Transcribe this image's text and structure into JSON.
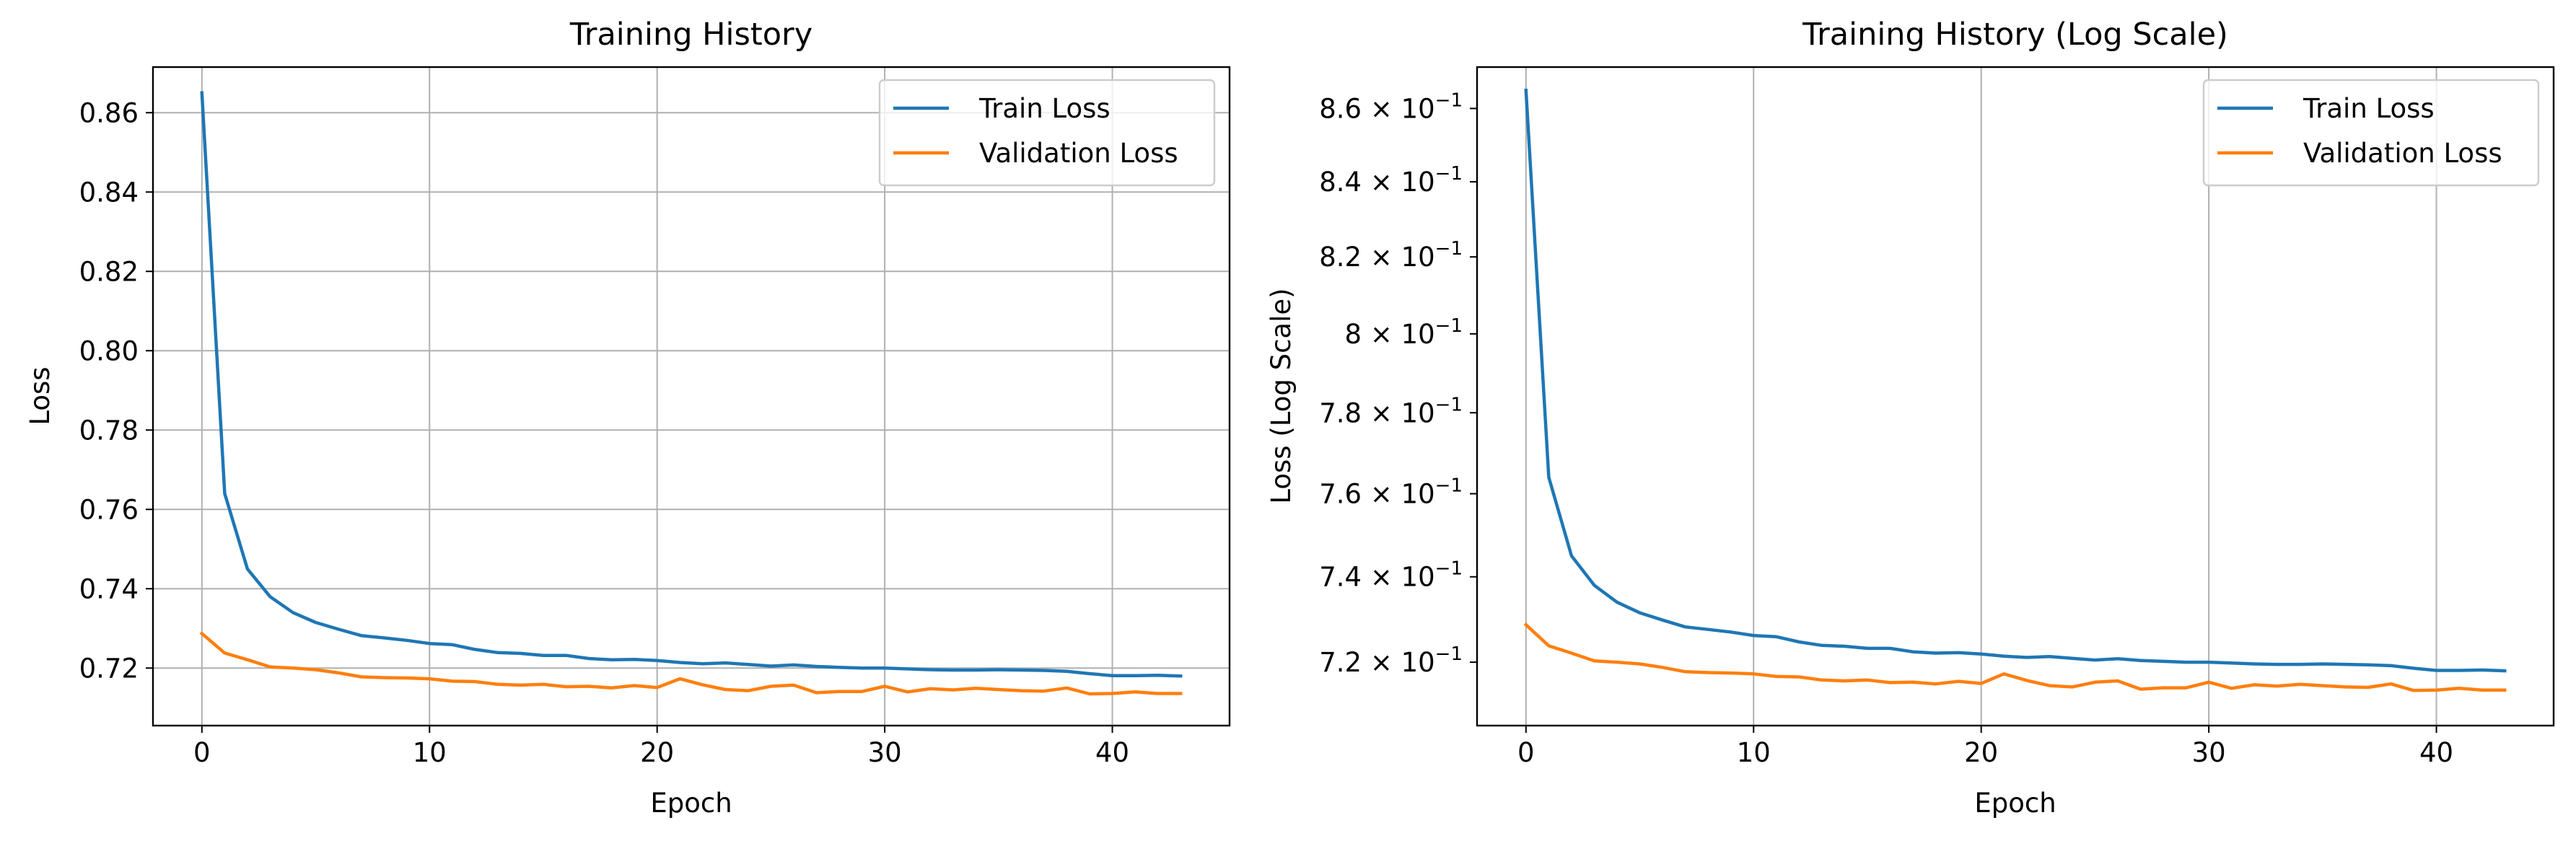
{
  "chart_data": [
    {
      "type": "line",
      "title": "Training History",
      "xlabel": "Epoch",
      "ylabel": "Loss",
      "yscale": "linear",
      "xlim": [
        -2.15,
        45.15
      ],
      "ylim": [
        0.7055,
        0.8715
      ],
      "xticks": [
        0,
        10,
        20,
        30,
        40
      ],
      "xtick_labels": [
        "0",
        "10",
        "20",
        "30",
        "40"
      ],
      "yticks": [
        0.72,
        0.74,
        0.76,
        0.78,
        0.8,
        0.82,
        0.84,
        0.86
      ],
      "ytick_labels": [
        "0.72",
        "0.74",
        "0.76",
        "0.78",
        "0.80",
        "0.82",
        "0.84",
        "0.86"
      ],
      "grid": true,
      "legend_position": "upper right",
      "x": [
        0,
        1,
        2,
        3,
        4,
        5,
        6,
        7,
        8,
        9,
        10,
        11,
        12,
        13,
        14,
        15,
        16,
        17,
        18,
        19,
        20,
        21,
        22,
        23,
        24,
        25,
        26,
        27,
        28,
        29,
        30,
        31,
        32,
        33,
        34,
        35,
        36,
        37,
        38,
        39,
        40,
        41,
        42,
        43
      ],
      "series": [
        {
          "name": "Train Loss",
          "color": "#1f77b4",
          "values": [
            0.865,
            0.764,
            0.745,
            0.738,
            0.734,
            0.7315,
            0.7298,
            0.7282,
            0.7276,
            0.727,
            0.7262,
            0.7259,
            0.7247,
            0.7239,
            0.7237,
            0.7232,
            0.7232,
            0.7224,
            0.7221,
            0.7222,
            0.7219,
            0.7214,
            0.7211,
            0.7213,
            0.7209,
            0.7205,
            0.7208,
            0.7204,
            0.7202,
            0.72,
            0.72,
            0.7198,
            0.7196,
            0.7195,
            0.7195,
            0.7196,
            0.7195,
            0.7194,
            0.7192,
            0.7186,
            0.7181,
            0.7181,
            0.7182,
            0.718
          ]
        },
        {
          "name": "Validation Loss",
          "color": "#ff7f0e",
          "values": [
            0.7287,
            0.7238,
            0.7221,
            0.7203,
            0.72,
            0.7196,
            0.7188,
            0.7178,
            0.7176,
            0.7175,
            0.7173,
            0.7167,
            0.7166,
            0.7159,
            0.7157,
            0.7159,
            0.7153,
            0.7154,
            0.715,
            0.7156,
            0.7151,
            0.7173,
            0.7158,
            0.7146,
            0.7143,
            0.7154,
            0.7157,
            0.7138,
            0.7141,
            0.7141,
            0.7154,
            0.714,
            0.7148,
            0.7145,
            0.7149,
            0.7146,
            0.7143,
            0.7142,
            0.715,
            0.7135,
            0.7136,
            0.714,
            0.7136,
            0.7136
          ]
        }
      ]
    },
    {
      "type": "line",
      "title": "Training History (Log Scale)",
      "xlabel": "Epoch",
      "ylabel": "Loss (Log Scale)",
      "yscale": "log",
      "xlim": [
        -2.15,
        45.15
      ],
      "ylim": [
        0.7055,
        0.8715
      ],
      "xticks": [
        0,
        10,
        20,
        30,
        40
      ],
      "xtick_labels": [
        "0",
        "10",
        "20",
        "30",
        "40"
      ],
      "yticks": [
        0.72,
        0.74,
        0.76,
        0.78,
        0.8,
        0.82,
        0.84,
        0.86
      ],
      "ytick_labels": [
        {
          "mant": "7.2 × 10",
          "exp": "−1"
        },
        {
          "mant": "7.4 × 10",
          "exp": "−1"
        },
        {
          "mant": "7.6 × 10",
          "exp": "−1"
        },
        {
          "mant": "7.8 × 10",
          "exp": "−1"
        },
        {
          "mant": "8 × 10",
          "exp": "−1"
        },
        {
          "mant": "8.2 × 10",
          "exp": "−1"
        },
        {
          "mant": "8.4 × 10",
          "exp": "−1"
        },
        {
          "mant": "8.6 × 10",
          "exp": "−1"
        }
      ],
      "grid": "x-only",
      "legend_position": "upper right",
      "x": [
        0,
        1,
        2,
        3,
        4,
        5,
        6,
        7,
        8,
        9,
        10,
        11,
        12,
        13,
        14,
        15,
        16,
        17,
        18,
        19,
        20,
        21,
        22,
        23,
        24,
        25,
        26,
        27,
        28,
        29,
        30,
        31,
        32,
        33,
        34,
        35,
        36,
        37,
        38,
        39,
        40,
        41,
        42,
        43
      ],
      "series": [
        {
          "name": "Train Loss",
          "color": "#1f77b4",
          "values": [
            0.865,
            0.764,
            0.745,
            0.738,
            0.734,
            0.7315,
            0.7298,
            0.7282,
            0.7276,
            0.727,
            0.7262,
            0.7259,
            0.7247,
            0.7239,
            0.7237,
            0.7232,
            0.7232,
            0.7224,
            0.7221,
            0.7222,
            0.7219,
            0.7214,
            0.7211,
            0.7213,
            0.7209,
            0.7205,
            0.7208,
            0.7204,
            0.7202,
            0.72,
            0.72,
            0.7198,
            0.7196,
            0.7195,
            0.7195,
            0.7196,
            0.7195,
            0.7194,
            0.7192,
            0.7186,
            0.7181,
            0.7181,
            0.7182,
            0.718
          ]
        },
        {
          "name": "Validation Loss",
          "color": "#ff7f0e",
          "values": [
            0.7287,
            0.7238,
            0.7221,
            0.7203,
            0.72,
            0.7196,
            0.7188,
            0.7178,
            0.7176,
            0.7175,
            0.7173,
            0.7167,
            0.7166,
            0.7159,
            0.7157,
            0.7159,
            0.7153,
            0.7154,
            0.715,
            0.7156,
            0.7151,
            0.7173,
            0.7158,
            0.7146,
            0.7143,
            0.7154,
            0.7157,
            0.7138,
            0.7141,
            0.7141,
            0.7154,
            0.714,
            0.7148,
            0.7145,
            0.7149,
            0.7146,
            0.7143,
            0.7142,
            0.715,
            0.7135,
            0.7136,
            0.714,
            0.7136,
            0.7136
          ]
        }
      ]
    }
  ]
}
